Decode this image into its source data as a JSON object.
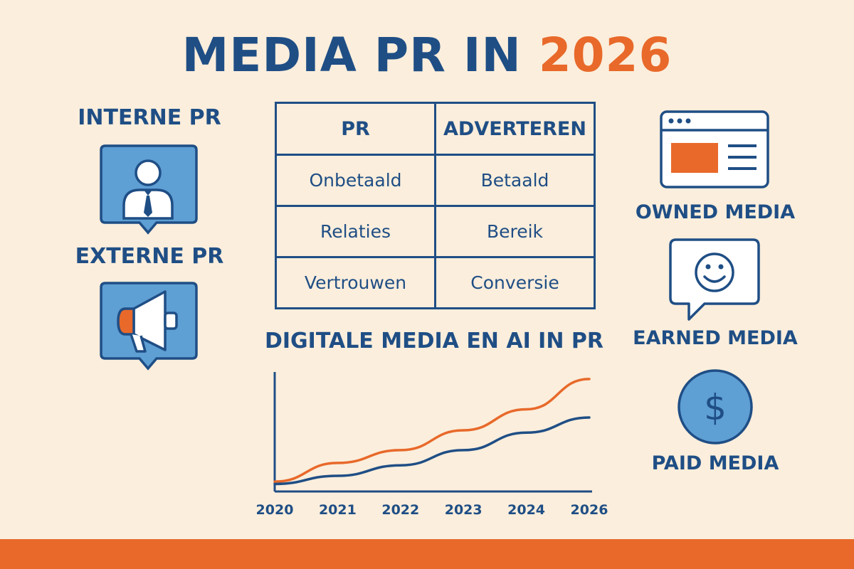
{
  "header": {
    "title_main": "MEDIA PR IN ",
    "title_accent": "2026"
  },
  "left": {
    "internal_label": "INTERNE PR",
    "external_label": "EXTERNE PR",
    "internal_icon": "person-tie-icon",
    "external_icon": "megaphone-icon"
  },
  "table": {
    "headers": [
      "PR",
      "ADVERTEREN"
    ],
    "rows": [
      [
        "Onbetaald",
        "Betaald"
      ],
      [
        "Relaties",
        "Bereik"
      ],
      [
        "Vertrouwen",
        "Conversie"
      ]
    ]
  },
  "right": {
    "owned_label": "OWNED MEDIA",
    "earned_label": "EARNED MEDIA",
    "paid_label": "PAID MEDIA",
    "owned_icon": "browser-window-icon",
    "earned_icon": "smiley-speech-bubble-icon",
    "paid_icon": "dollar-coin-icon"
  },
  "chart_data": {
    "type": "line",
    "title": "DIGITALE MEDIA EN AI IN PR",
    "x": [
      "2020",
      "2021",
      "2022",
      "2023",
      "2024",
      "2026"
    ],
    "series": [
      {
        "color": "#E8692A",
        "values": [
          6,
          22,
          33,
          50,
          68,
          94
        ]
      },
      {
        "color": "#1F4E85",
        "values": [
          4,
          11,
          20,
          33,
          48,
          61
        ]
      }
    ],
    "ylim": [
      0,
      100
    ],
    "grid": false
  },
  "colors": {
    "primary": "#1F4E85",
    "accent": "#E8692A",
    "icon_fill": "#5E9FD4",
    "background": "#FBEEDC"
  }
}
